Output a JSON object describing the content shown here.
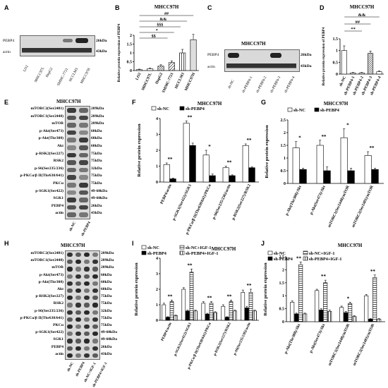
{
  "panel_letters": [
    "A",
    "B",
    "C",
    "D",
    "E",
    "F",
    "G",
    "H",
    "I",
    "J"
  ],
  "blots": {
    "A": {
      "rows": [
        {
          "label": "PEBP4",
          "size": "26kDa"
        },
        {
          "label": "actin",
          "size": "43kDa"
        }
      ],
      "lanes": [
        "LO2",
        "MHCC97L",
        "HepG2",
        "SMMC-7721",
        "HCCLM3",
        "MHCC97H"
      ]
    },
    "C": {
      "title": "MHCC97H",
      "rows": [
        {
          "label": "PEBP4",
          "size": "26kDa"
        },
        {
          "label": "actin",
          "size": "43kDa"
        }
      ],
      "lanes": [
        "sh-NC",
        "sh-PEBP4-1",
        "sh-PEBP4-2",
        "sh-PEBP4-3",
        "sh-PEBP4-4"
      ]
    },
    "E": {
      "title": "MHCC97H",
      "rows": [
        {
          "label": "mTORC2(Ser2481)",
          "size": "289kDa"
        },
        {
          "label": "mTORC1(Ser2448)",
          "size": "289kDa"
        },
        {
          "label": "mTOR",
          "size": "289kDa"
        },
        {
          "label": "p-Akt(Ser473)",
          "size": "60kDa"
        },
        {
          "label": "p-Akt(Thr308)",
          "size": "60kDa"
        },
        {
          "label": "Akt",
          "size": "60kDa"
        },
        {
          "label": "p-RSK2(Ser227)",
          "size": "75kDa"
        },
        {
          "label": "RSK2",
          "size": "75kDa"
        },
        {
          "label": "p-S6(Ser235/236)",
          "size": "32kDa"
        },
        {
          "label": "p-PKCα/β II(Thr638/641)",
          "size": "75kDa"
        },
        {
          "label": "PKCα",
          "size": "75kDa"
        },
        {
          "label": "p-SGK1(Ser422)",
          "size": "49-60kDa"
        },
        {
          "label": "SGK1",
          "size": "49-60kDa"
        },
        {
          "label": "PEBP4",
          "size": "26kDa"
        },
        {
          "label": "actin",
          "size": "43kDa"
        }
      ],
      "lanes": [
        "sh-NC",
        "sh-PEBP4"
      ]
    },
    "H": {
      "title": "MHCC97H",
      "rows": [
        {
          "label": "mTORC2(Ser2481)",
          "size": "289kDa"
        },
        {
          "label": "mTORC1(Ser2448)",
          "size": "289kDa"
        },
        {
          "label": "mTOR",
          "size": "289kDa"
        },
        {
          "label": "p-Akt(Ser473)",
          "size": "60kDa"
        },
        {
          "label": "p-Akt(Thr308)",
          "size": "60kDa"
        },
        {
          "label": "Akt",
          "size": "60kDa"
        },
        {
          "label": "p-RSK2(Ser227)",
          "size": "75kDa"
        },
        {
          "label": "RSK2",
          "size": "75kDa"
        },
        {
          "label": "p-S6(Ser235/236)",
          "size": "32kDa"
        },
        {
          "label": "p-PKCα/β II(Thr638/641)",
          "size": "75kDa"
        },
        {
          "label": "PKCα",
          "size": "75kDa"
        },
        {
          "label": "p-SGK1(Ser422)",
          "size": "49-60kDa"
        },
        {
          "label": "SGK1",
          "size": "49-60kDa"
        },
        {
          "label": "PEBP4",
          "size": "26kDa"
        },
        {
          "label": "actin",
          "size": "43kDa"
        }
      ],
      "lanes": [
        "sh-NC",
        "sh-PEBP4",
        "sh-NC+IGF-1",
        "sh-PEBP4+IGF-1"
      ]
    }
  },
  "chart_data": [
    {
      "id": "B",
      "type": "bar",
      "title": "MHCC97H",
      "ylabel": "Relative protein expression of PEBP4",
      "ylim": [
        0,
        2.0
      ],
      "yticks": [
        0,
        0.5,
        1.0,
        1.5,
        2.0
      ],
      "categories": [
        "LO2",
        "MHCC97L",
        "HepG2",
        "SMMC-7721",
        "HCCLM3",
        "MHCC97H"
      ],
      "values": [
        0.05,
        0.1,
        0.25,
        0.45,
        1.0,
        1.75
      ],
      "errors": [
        0.03,
        0.05,
        0.08,
        0.1,
        0.2,
        0.3
      ],
      "significance": [
        "##",
        "&&",
        "§§§",
        "*",
        "$$"
      ]
    },
    {
      "id": "D",
      "type": "bar",
      "title": "MHCC97H",
      "ylabel": "Relative protein expression of PEBP4",
      "ylim": [
        0,
        1.5
      ],
      "yticks": [
        0.0,
        0.5,
        1.0,
        1.5
      ],
      "categories": [
        "sh-NC",
        "sh-PEBP4-1",
        "sh-PEBP4-2",
        "sh-PEBP4-3",
        "sh-PEBP4-4"
      ],
      "values": [
        1.0,
        0.05,
        0.05,
        0.88,
        0.1
      ],
      "errors": [
        0.2,
        0.02,
        0.02,
        0.1,
        0.03
      ],
      "significance": [
        "&&",
        "##",
        "**"
      ]
    },
    {
      "id": "F",
      "type": "bar",
      "title": "MHCC97H",
      "ylabel": "Relative protein expression",
      "ylim": [
        0,
        4
      ],
      "yticks": [
        0,
        1,
        2,
        3,
        4
      ],
      "categories": [
        "PEBP4/actin",
        "p-SGK1(Ser422)/SGK1",
        "p-PKCα/β II(Thr638/641)/PKCα",
        "p-S6(Ser235/236)/actin",
        "p-RSK2(Ser227)/RSK2"
      ],
      "series": [
        {
          "name": "sh-NC",
          "values": [
            1.1,
            3.7,
            1.7,
            0.9,
            2.3
          ],
          "errors": [
            0.1,
            0.15,
            0.3,
            0.1,
            0.1
          ]
        },
        {
          "name": "sh-PEBP4",
          "values": [
            0.2,
            2.3,
            0.4,
            0.4,
            0.9
          ],
          "errors": [
            0.05,
            0.15,
            0.1,
            0.05,
            0.05
          ]
        }
      ],
      "significance": [
        "**",
        "**",
        "*",
        "**",
        "**"
      ]
    },
    {
      "id": "G",
      "type": "bar",
      "title": "MHCC97H",
      "ylabel": "Relative protein expression",
      "ylim": [
        0,
        2.5
      ],
      "yticks": [
        0.0,
        0.5,
        1.0,
        1.5,
        2.0,
        2.5
      ],
      "categories": [
        "p-Akt(Thr308)/Akt",
        "p-Akt(Ser473)/Akt",
        "mTORC1(Ser2448)/mTOR",
        "mTORC2(Ser2481)/mTOR"
      ],
      "series": [
        {
          "name": "sh-NC",
          "values": [
            1.4,
            1.5,
            1.8,
            1.1
          ],
          "errors": [
            0.25,
            0.2,
            0.35,
            0.15
          ]
        },
        {
          "name": "sh-PEBP4",
          "values": [
            0.55,
            0.5,
            0.5,
            0.55
          ],
          "errors": [
            0.05,
            0.15,
            0.1,
            0.05
          ]
        }
      ],
      "significance": [
        "*",
        "**",
        "*",
        "**"
      ]
    },
    {
      "id": "I",
      "type": "bar",
      "title": "MHCC97H",
      "ylabel": "Relative protein expression",
      "ylim": [
        0,
        4
      ],
      "yticks": [
        0,
        1,
        2,
        3,
        4
      ],
      "categories": [
        "PEBP4/actin",
        "p-SGK1(Ser422)/SGK1",
        "p-PKCα/β II(Thr638/641)/PKCα",
        "p-RSK2(Ser227)/RSK2",
        "p-S6(Ser235/236)/actin"
      ],
      "series": [
        {
          "name": "sh-NC",
          "values": [
            1.0,
            2.0,
            1.1,
            0.9,
            1.8
          ],
          "errors": [
            0.1,
            0.1,
            0.1,
            0.1,
            0.15
          ]
        },
        {
          "name": "sh-PEBP4",
          "values": [
            0.2,
            0.6,
            0.4,
            0.2,
            0.8
          ],
          "errors": [
            0.03,
            0.05,
            0.05,
            0.03,
            0.1
          ]
        },
        {
          "name": "sh-NC+IGF-1",
          "values": [
            1.2,
            3.1,
            1.1,
            1.2,
            1.8
          ],
          "errors": [
            0.1,
            0.2,
            0.1,
            0.1,
            0.2
          ]
        },
        {
          "name": "sh-PEBP4+IGF-1",
          "values": [
            0.3,
            0.6,
            0.5,
            0.6,
            0.6
          ],
          "errors": [
            0.03,
            0.05,
            0.05,
            0.05,
            0.05
          ]
        }
      ],
      "significance": [
        "**",
        "**",
        "**",
        "**",
        "**"
      ]
    },
    {
      "id": "J",
      "type": "bar",
      "title": "MHCC97H",
      "ylabel": "Relative protein expression",
      "ylim": [
        0,
        2.5
      ],
      "yticks": [
        0.0,
        0.5,
        1.0,
        1.5,
        2.0,
        2.5
      ],
      "categories": [
        "p-Akt(Thr308)/Akt",
        "p-Akt(Ser473)/Akt",
        "mTORC1(Ser2448)/mTOR",
        "mTORC2(Ser2481)/mTOR"
      ],
      "series": [
        {
          "name": "sh-NC",
          "values": [
            0.75,
            1.2,
            0.55,
            1.0
          ],
          "errors": [
            0.05,
            0.05,
            0.05,
            0.05
          ]
        },
        {
          "name": "sh-PEBP4",
          "values": [
            0.3,
            0.45,
            0.35,
            0.1
          ],
          "errors": [
            0.03,
            0.05,
            0.05,
            0.02
          ]
        },
        {
          "name": "sh-NC+IGF-1",
          "values": [
            2.2,
            1.5,
            0.7,
            1.7
          ],
          "errors": [
            0.1,
            0.1,
            0.05,
            0.1
          ]
        },
        {
          "name": "sh-PEBP4+IGF-1",
          "values": [
            0.3,
            0.4,
            0.2,
            0.1
          ],
          "errors": [
            0.03,
            0.05,
            0.03,
            0.02
          ]
        }
      ],
      "significance": [
        "**",
        "**",
        "*",
        "**"
      ]
    }
  ]
}
